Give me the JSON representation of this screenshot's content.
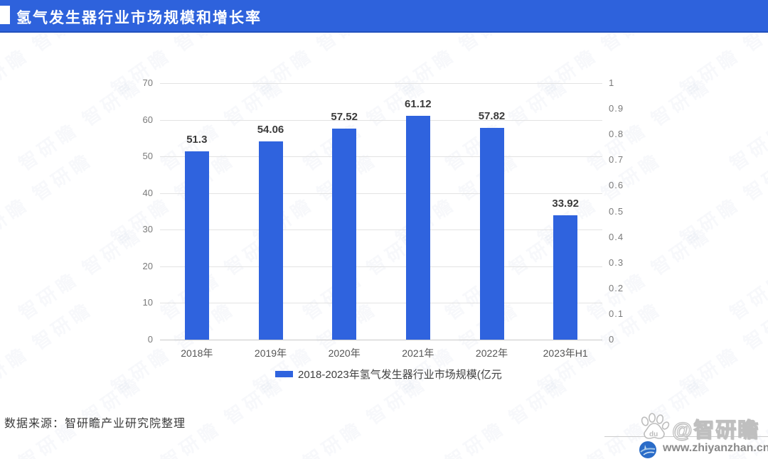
{
  "header": {
    "title": "氢气发生器行业市场规模和增长率"
  },
  "chart_data": {
    "type": "bar",
    "title": "氢气发生器行业市场规模和增长率",
    "categories": [
      "2018年",
      "2019年",
      "2020年",
      "2021年",
      "2022年",
      "2023年H1"
    ],
    "values": [
      51.3,
      54.06,
      57.52,
      61.12,
      57.82,
      33.92
    ],
    "value_labels": [
      "51.3",
      "54.06",
      "57.52",
      "61.12",
      "57.82",
      "33.92"
    ],
    "legend": {
      "position": "bottom",
      "label": "2018-2023年氢气发生器行业市场规模(亿元"
    },
    "left_axis": {
      "min": 0,
      "max": 70,
      "ticks": [
        "70",
        "60",
        "50",
        "40",
        "30",
        "20",
        "10",
        "0"
      ]
    },
    "right_axis": {
      "min": 0,
      "max": 1,
      "ticks": [
        "1",
        "0.9",
        "0.8",
        "0.7",
        "0.6",
        "0.5",
        "0.4",
        "0.3",
        "0.2",
        "0.1",
        "0"
      ]
    },
    "grid": true,
    "bar_color": "#2f63de"
  },
  "footer": {
    "source": "数据来源：智研瞻产业研究院整理"
  },
  "brand": {
    "name": "@智研瞻",
    "url": "www.zhiyanzhan.cn",
    "paw_text": "du",
    "background_watermark": "智研瞻 智研瞻"
  },
  "colors": {
    "header_blue": "#2e62dc",
    "bar_blue": "#2f63de"
  }
}
